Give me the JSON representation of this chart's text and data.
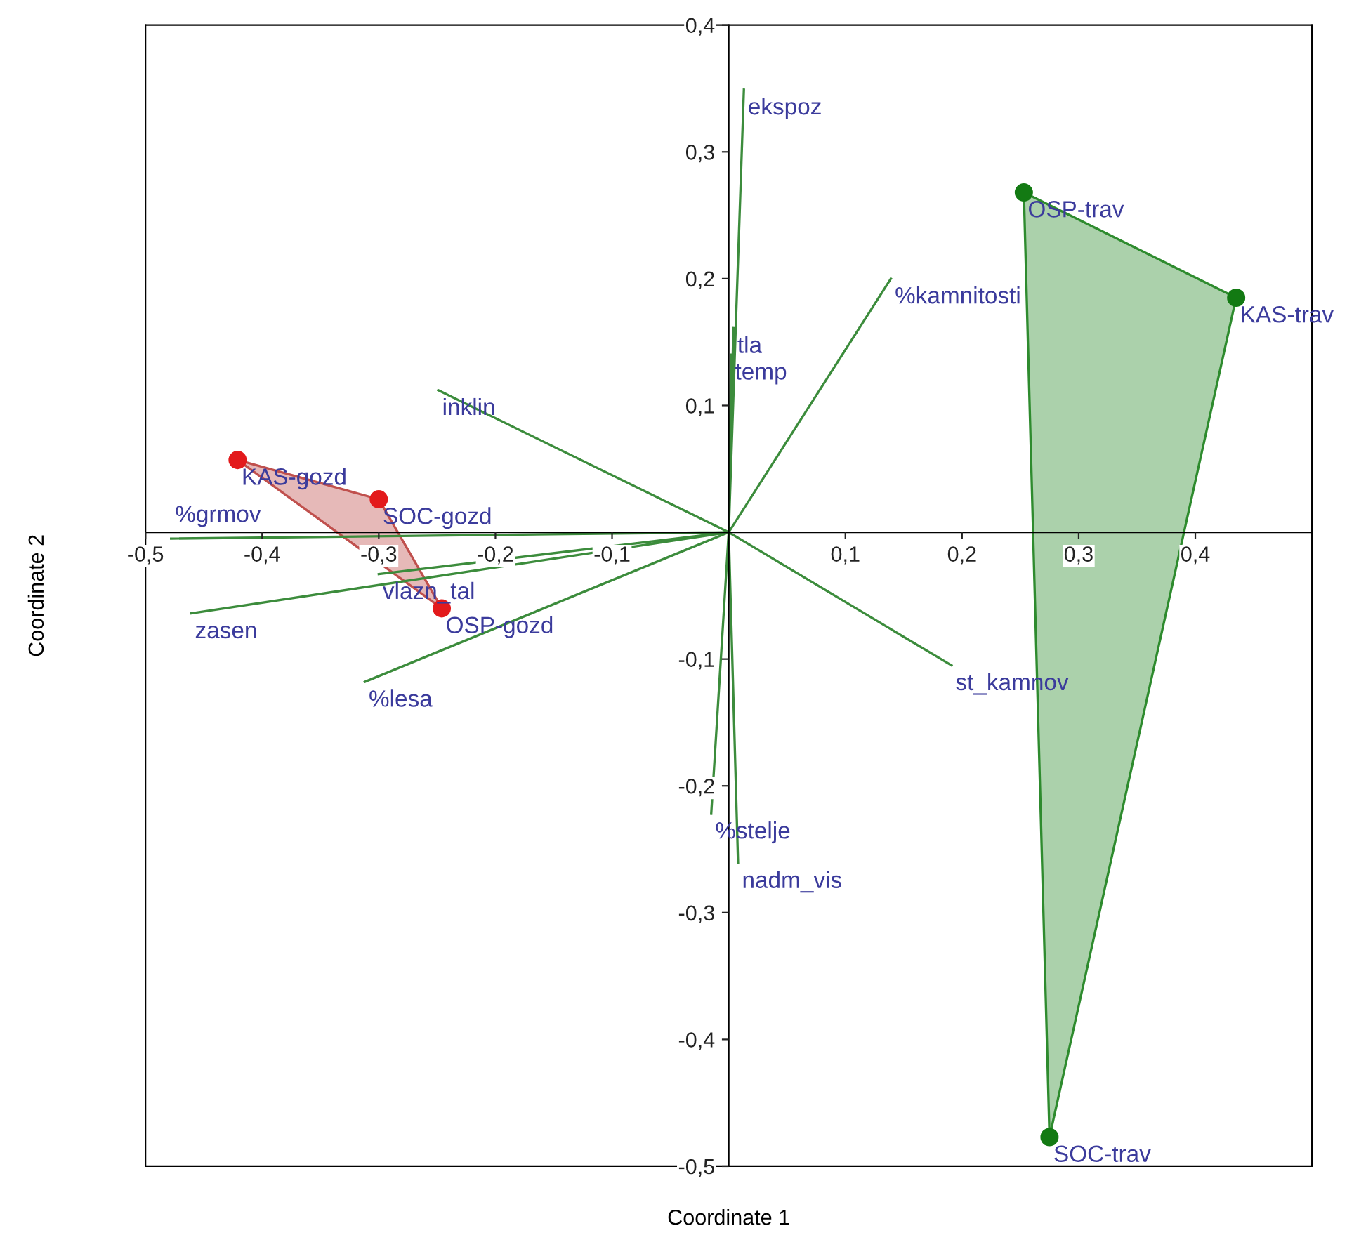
{
  "chart_data": {
    "type": "scatter",
    "xlabel": "Coordinate 1",
    "ylabel": "Coordinate 2",
    "xlim": [
      -0.5,
      0.5
    ],
    "ylim": [
      -0.5,
      0.4
    ],
    "xticks": [
      {
        "value": -0.5,
        "label": "-0,5"
      },
      {
        "value": -0.4,
        "label": "-0,4"
      },
      {
        "value": -0.3,
        "label": "-0,3"
      },
      {
        "value": -0.2,
        "label": "-0,2"
      },
      {
        "value": -0.1,
        "label": "-0,1"
      },
      {
        "value": 0.1,
        "label": "0,1"
      },
      {
        "value": 0.2,
        "label": "0,2"
      },
      {
        "value": 0.3,
        "label": "0,3"
      },
      {
        "value": 0.4,
        "label": "0,4"
      }
    ],
    "yticks": [
      {
        "value": -0.5,
        "label": "-0,5"
      },
      {
        "value": -0.4,
        "label": "-0,4"
      },
      {
        "value": -0.3,
        "label": "-0,3"
      },
      {
        "value": -0.2,
        "label": "-0,2"
      },
      {
        "value": -0.1,
        "label": "-0,1"
      },
      {
        "value": 0.1,
        "label": "0,1"
      },
      {
        "value": 0.2,
        "label": "0,2"
      },
      {
        "value": 0.3,
        "label": "0,3"
      },
      {
        "value": 0.4,
        "label": "0,4"
      }
    ],
    "grid": false,
    "legend": false,
    "series": [
      {
        "type": "line",
        "color": "#3c8c3c",
        "x": [
          0,
          0.013,
          null,
          0,
          0.139,
          null,
          0,
          0.004,
          null,
          0,
          0.002,
          null,
          0,
          -0.249,
          null,
          0,
          -0.478,
          null,
          0,
          -0.3,
          null,
          0,
          -0.461,
          null,
          0,
          -0.312,
          null,
          0,
          0.191,
          null,
          0,
          -0.015,
          null,
          0,
          0.008
        ],
        "values": [
          0,
          0.349,
          null,
          0,
          0.2,
          null,
          0,
          0.161,
          null,
          0,
          0.14,
          null,
          0,
          0.112,
          null,
          0,
          -0.005,
          null,
          0,
          -0.033,
          null,
          0,
          -0.064,
          null,
          0,
          -0.118,
          null,
          0,
          -0.105,
          null,
          0,
          -0.222,
          null,
          0,
          -0.261
        ]
      },
      {
        "type": "area",
        "color": "#c0504d",
        "x": [
          -0.421,
          -0.3,
          -0.246,
          -0.421
        ],
        "values": [
          0.057,
          0.026,
          -0.06,
          0.057
        ]
      },
      {
        "type": "area",
        "color": "#2e8b2e",
        "x": [
          0.253,
          0.435,
          0.275,
          0.253
        ],
        "values": [
          0.268,
          0.185,
          -0.477,
          0.268
        ]
      },
      {
        "type": "scatter",
        "color": "#e31a1c",
        "marker": "circle",
        "x": [
          -0.421,
          -0.3,
          -0.246
        ],
        "values": [
          0.057,
          0.026,
          -0.06
        ]
      },
      {
        "type": "scatter",
        "color": "#137a13",
        "marker": "circle",
        "x": [
          0.253,
          0.435,
          0.275
        ],
        "values": [
          0.268,
          0.185,
          -0.477
        ]
      }
    ],
    "annotations": [
      {
        "text": "KAS-gozd",
        "x": -0.421,
        "y": 0.057
      },
      {
        "text": "SOC-gozd",
        "x": -0.3,
        "y": 0.026
      },
      {
        "text": "OSP-gozd",
        "x": -0.246,
        "y": -0.06
      },
      {
        "text": "OSP-trav",
        "x": 0.253,
        "y": 0.268
      },
      {
        "text": "KAS-trav",
        "x": 0.435,
        "y": 0.185
      },
      {
        "text": "SOC-trav",
        "x": 0.275,
        "y": -0.477
      },
      {
        "text": "ekspoz",
        "x": 0.013,
        "y": 0.349
      },
      {
        "text": "%kamnitosti",
        "x": 0.139,
        "y": 0.2
      },
      {
        "text": "tla",
        "x": 0.004,
        "y": 0.161
      },
      {
        "text": "temp",
        "x": 0.002,
        "y": 0.14
      },
      {
        "text": "inklin",
        "x": -0.249,
        "y": 0.112
      },
      {
        "text": "%grmov",
        "x": -0.478,
        "y": -0.005
      },
      {
        "text": "vlazn_tal",
        "x": -0.3,
        "y": -0.033
      },
      {
        "text": "zasen",
        "x": -0.461,
        "y": -0.064
      },
      {
        "text": "%lesa",
        "x": -0.312,
        "y": -0.118
      },
      {
        "text": "st_kamnov",
        "x": 0.191,
        "y": -0.105
      },
      {
        "text": "%stelje",
        "x": -0.015,
        "y": -0.222
      },
      {
        "text": "nadm_vis",
        "x": 0.008,
        "y": -0.261
      }
    ]
  }
}
